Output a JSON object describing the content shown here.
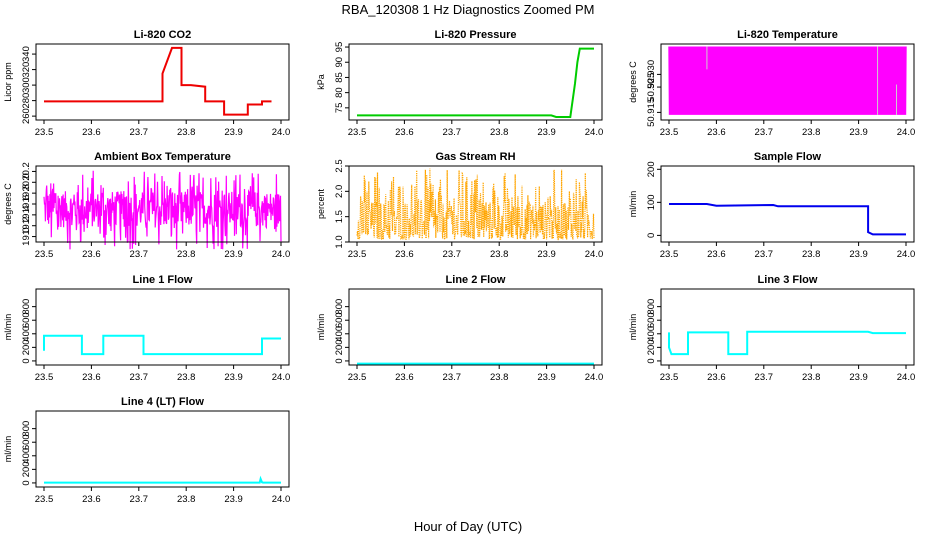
{
  "figure": {
    "title": "RBA_120308  1 Hz Diagnostics Zoomed PM",
    "xlabel": "Hour of Day (UTC)"
  },
  "colors": {
    "co2": "#ee0000",
    "pressure": "#00cc00",
    "li820_temp": "#ff00ff",
    "ambient_temp": "#ff00ff",
    "rh": "#ffa500",
    "sample_flow": "#0000ee",
    "line_flow": "#00ffff"
  },
  "chart_data": [
    {
      "type": "line",
      "title": "Li-820 CO2",
      "ylabel": "Licor ppm",
      "xlim": [
        23.5,
        24.0
      ],
      "ylim": [
        255,
        353
      ],
      "xticks": [
        "23.5",
        "23.6",
        "23.7",
        "23.8",
        "23.9",
        "24.0"
      ],
      "yticks": [
        "260",
        "280",
        "300",
        "320",
        "340"
      ],
      "series": [
        {
          "color_key": "co2",
          "x": [
            23.5,
            23.75,
            23.75,
            23.77,
            23.77,
            23.79,
            23.79,
            23.8,
            23.81,
            23.84,
            23.84,
            23.88,
            23.88,
            23.93,
            23.93,
            23.96,
            23.96,
            23.98
          ],
          "y": [
            279,
            279,
            315,
            348,
            348,
            348,
            300,
            300,
            300,
            298,
            279,
            279,
            262,
            262,
            275,
            275,
            279,
            279
          ]
        }
      ]
    },
    {
      "type": "line",
      "title": "Li-820 Pressure",
      "ylabel": "kPa",
      "xlim": [
        23.5,
        24.0
      ],
      "ylim": [
        71,
        96
      ],
      "xticks": [
        "23.5",
        "23.6",
        "23.7",
        "23.8",
        "23.9",
        "24.0"
      ],
      "yticks": [
        "75",
        "80",
        "85",
        "90",
        "95"
      ],
      "series": [
        {
          "color_key": "pressure",
          "x": [
            23.5,
            23.91,
            23.92,
            23.95,
            23.96,
            23.965,
            23.97,
            23.975,
            24.0
          ],
          "y": [
            72.5,
            72.5,
            72.0,
            72.0,
            83,
            90,
            94.5,
            94.5,
            94.5
          ]
        }
      ]
    },
    {
      "type": "line",
      "title": "Li-820 Temperature",
      "ylabel": "degrees C",
      "xlim": [
        23.5,
        24.0
      ],
      "ylim": [
        50.912,
        50.942
      ],
      "xticks": [
        "23.5",
        "23.6",
        "23.7",
        "23.8",
        "23.9",
        "24.0"
      ],
      "yticks": [
        "50.915",
        "50.925",
        "50.930"
      ],
      "series": [
        {
          "color_key": "li820_temp",
          "noise": {
            "lo": 50.914,
            "hi": 50.941,
            "mode": "binary"
          }
        }
      ]
    },
    {
      "type": "line",
      "title": "Ambient Box Temperature",
      "ylabel": "degrees C",
      "xlim": [
        23.5,
        24.0
      ],
      "ylim": [
        18.9,
        20.3
      ],
      "xticks": [
        "23.5",
        "23.6",
        "23.7",
        "23.8",
        "23.9",
        "24.0"
      ],
      "yticks": [
        "19.0",
        "19.2",
        "19.4",
        "19.6",
        "19.8",
        "20.0",
        "20.2"
      ],
      "series": [
        {
          "color_key": "ambient_temp",
          "noise": {
            "mid": 19.5,
            "amp": 0.75,
            "mode": "spiky"
          }
        }
      ]
    },
    {
      "type": "line",
      "title": "Gas Stream RH",
      "ylabel": "percent",
      "xlim": [
        23.5,
        24.0
      ],
      "ylim": [
        1.0,
        2.5
      ],
      "xticks": [
        "23.5",
        "23.6",
        "23.7",
        "23.8",
        "23.9",
        "24.0"
      ],
      "yticks": [
        "1.0",
        "1.5",
        "2.0",
        "2.5"
      ],
      "series": [
        {
          "color_key": "rh",
          "noise": {
            "lo": 1.05,
            "hi": 2.45,
            "mode": "dotted"
          }
        }
      ]
    },
    {
      "type": "line",
      "title": "Sample Flow",
      "ylabel": "ml/min",
      "xlim": [
        23.5,
        24.0
      ],
      "ylim": [
        -20,
        210
      ],
      "xticks": [
        "23.5",
        "23.6",
        "23.7",
        "23.8",
        "23.9",
        "24.0"
      ],
      "yticks": [
        "0",
        "100",
        "200"
      ],
      "series": [
        {
          "color_key": "sample_flow",
          "x": [
            23.5,
            23.58,
            23.6,
            23.72,
            23.73,
            23.92,
            23.92,
            23.93,
            24.0
          ],
          "y": [
            95,
            95,
            90,
            92,
            88,
            88,
            10,
            3,
            3
          ]
        }
      ]
    },
    {
      "type": "line",
      "title": "Line 1 Flow",
      "ylabel": "ml/min",
      "xlim": [
        23.5,
        24.0
      ],
      "ylim": [
        -60,
        1060
      ],
      "xticks": [
        "23.5",
        "23.6",
        "23.7",
        "23.8",
        "23.9",
        "24.0"
      ],
      "yticks": [
        "0",
        "200",
        "400",
        "600",
        "800"
      ],
      "series": [
        {
          "color_key": "line_flow",
          "x": [
            23.5,
            23.5,
            23.58,
            23.58,
            23.625,
            23.625,
            23.71,
            23.71,
            23.73,
            23.96,
            23.96,
            24.0
          ],
          "y": [
            150,
            370,
            370,
            100,
            100,
            370,
            370,
            100,
            100,
            100,
            330,
            330
          ]
        }
      ]
    },
    {
      "type": "line",
      "title": "Line 2 Flow",
      "ylabel": "ml/min",
      "xlim": [
        23.5,
        24.0
      ],
      "ylim": [
        -60,
        1060
      ],
      "xticks": [
        "23.5",
        "23.6",
        "23.7",
        "23.8",
        "23.9",
        "24.0"
      ],
      "yticks": [
        "0",
        "200",
        "400",
        "600",
        "800"
      ],
      "series": [
        {
          "color_key": "line_flow",
          "x": [
            23.5,
            24.0
          ],
          "y": [
            -40,
            -40
          ]
        }
      ]
    },
    {
      "type": "line",
      "title": "Line 3 Flow",
      "ylabel": "ml/min",
      "xlim": [
        23.5,
        24.0
      ],
      "ylim": [
        -60,
        1060
      ],
      "xticks": [
        "23.5",
        "23.6",
        "23.7",
        "23.8",
        "23.9",
        "24.0"
      ],
      "yticks": [
        "0",
        "200",
        "400",
        "600",
        "800"
      ],
      "series": [
        {
          "color_key": "line_flow",
          "x": [
            23.5,
            23.5,
            23.505,
            23.54,
            23.54,
            23.625,
            23.625,
            23.665,
            23.665,
            23.92,
            23.93,
            24.0
          ],
          "y": [
            420,
            200,
            100,
            100,
            420,
            420,
            100,
            100,
            430,
            430,
            410,
            410
          ]
        }
      ]
    },
    {
      "type": "line",
      "title": "Line 4 (LT) Flow",
      "ylabel": "ml/min",
      "xlim": [
        23.5,
        24.0
      ],
      "ylim": [
        -60,
        1060
      ],
      "xticks": [
        "23.5",
        "23.6",
        "23.7",
        "23.8",
        "23.9",
        "24.0"
      ],
      "yticks": [
        "0",
        "200",
        "400",
        "600",
        "800"
      ],
      "series": [
        {
          "color_key": "line_flow",
          "x": [
            23.5,
            23.955,
            23.957,
            23.96,
            23.962,
            24.0
          ],
          "y": [
            5,
            5,
            60,
            10,
            5,
            5
          ]
        }
      ]
    }
  ]
}
